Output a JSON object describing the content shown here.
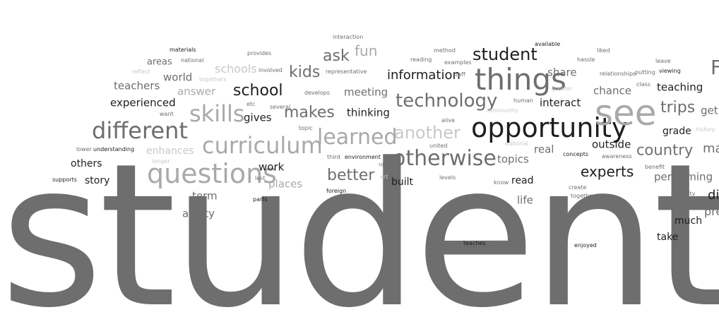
{
  "colors": {
    "dark": "#1e1e1e",
    "mid": "#6e6e6e",
    "light": "#a9a9a9",
    "faint": "#c8c8c8"
  },
  "words": [
    {
      "text": "students",
      "tone": "mid"
    },
    {
      "text": "opportunity",
      "tone": "dark"
    },
    {
      "text": "see",
      "tone": "light"
    },
    {
      "text": "things",
      "tone": "mid"
    },
    {
      "text": "questions",
      "tone": "light"
    },
    {
      "text": "curriculum",
      "tone": "light"
    },
    {
      "text": "different",
      "tone": "mid"
    },
    {
      "text": "otherwise",
      "tone": "mid"
    },
    {
      "text": "technology",
      "tone": "mid"
    },
    {
      "text": "learned",
      "tone": "light"
    },
    {
      "text": "skills",
      "tone": "light"
    },
    {
      "text": "another",
      "tone": "faint"
    },
    {
      "text": "student",
      "tone": "dark"
    },
    {
      "text": "information",
      "tone": "dark"
    },
    {
      "text": "school",
      "tone": "dark"
    },
    {
      "text": "makes",
      "tone": "mid"
    },
    {
      "text": "better",
      "tone": "mid"
    },
    {
      "text": "experts",
      "tone": "dark"
    },
    {
      "text": "country",
      "tone": "mid"
    },
    {
      "text": "trips",
      "tone": "mid"
    },
    {
      "text": "kids",
      "tone": "mid"
    },
    {
      "text": "ask",
      "tone": "mid"
    },
    {
      "text": "fun",
      "tone": "light"
    },
    {
      "text": "experienced",
      "tone": "dark"
    },
    {
      "text": "teachers",
      "tone": "mid"
    },
    {
      "text": "world",
      "tone": "mid"
    },
    {
      "text": "answer",
      "tone": "light"
    },
    {
      "text": "schools",
      "tone": "faint"
    },
    {
      "text": "gives",
      "tone": "dark"
    },
    {
      "text": "thinking",
      "tone": "dark"
    },
    {
      "text": "meeting",
      "tone": "mid"
    },
    {
      "text": "share",
      "tone": "mid"
    },
    {
      "text": "interact",
      "tone": "dark"
    },
    {
      "text": "chance",
      "tone": "mid"
    },
    {
      "text": "teaching",
      "tone": "dark"
    },
    {
      "text": "outside",
      "tone": "dark"
    },
    {
      "text": "grade",
      "tone": "dark"
    },
    {
      "text": "get",
      "tone": "mid"
    },
    {
      "text": "performing",
      "tone": "mid"
    },
    {
      "text": "enhances",
      "tone": "faint"
    },
    {
      "text": "others",
      "tone": "dark"
    },
    {
      "text": "story",
      "tone": "dark"
    },
    {
      "text": "work",
      "tone": "dark"
    },
    {
      "text": "places",
      "tone": "light"
    },
    {
      "text": "term",
      "tone": "mid"
    },
    {
      "text": "ability",
      "tone": "mid"
    },
    {
      "text": "topics",
      "tone": "mid"
    },
    {
      "text": "real",
      "tone": "mid"
    },
    {
      "text": "read",
      "tone": "dark"
    },
    {
      "text": "life",
      "tone": "mid"
    },
    {
      "text": "built",
      "tone": "dark"
    },
    {
      "text": "much",
      "tone": "dark"
    },
    {
      "text": "take",
      "tone": "dark"
    },
    {
      "text": "areas",
      "tone": "mid"
    },
    {
      "text": "materials",
      "tone": "dark"
    },
    {
      "text": "national",
      "tone": "mid"
    },
    {
      "text": "reflect",
      "tone": "faint"
    },
    {
      "text": "togethers",
      "tone": "faint"
    },
    {
      "text": "provides",
      "tone": "mid"
    },
    {
      "text": "involved",
      "tone": "mid"
    },
    {
      "text": "representative",
      "tone": "mid"
    },
    {
      "text": "interaction",
      "tone": "mid"
    },
    {
      "text": "reading",
      "tone": "mid"
    },
    {
      "text": "method",
      "tone": "mid"
    },
    {
      "text": "examples",
      "tone": "mid"
    },
    {
      "text": "staff",
      "tone": "mid"
    },
    {
      "text": "available",
      "tone": "dark"
    },
    {
      "text": "hassle",
      "tone": "mid"
    },
    {
      "text": "liked",
      "tone": "mid"
    },
    {
      "text": "leave",
      "tone": "mid"
    },
    {
      "text": "relationships",
      "tone": "mid"
    },
    {
      "text": "putting",
      "tone": "mid"
    },
    {
      "text": "viewing",
      "tone": "dark"
    },
    {
      "text": "class",
      "tone": "mid"
    },
    {
      "text": "greater",
      "tone": "faint"
    },
    {
      "text": "human",
      "tone": "mid"
    },
    {
      "text": "community",
      "tone": "faint"
    },
    {
      "text": "develops",
      "tone": "mid"
    },
    {
      "text": "etc",
      "tone": "mid"
    },
    {
      "text": "several",
      "tone": "mid"
    },
    {
      "text": "want",
      "tone": "mid"
    },
    {
      "text": "alive",
      "tone": "mid"
    },
    {
      "text": "topic",
      "tone": "mid"
    },
    {
      "text": "united",
      "tone": "mid"
    },
    {
      "text": "editorial",
      "tone": "faint"
    },
    {
      "text": "history",
      "tone": "faint"
    },
    {
      "text": "lower",
      "tone": "mid"
    },
    {
      "text": "understanding",
      "tone": "dark"
    },
    {
      "text": "longer",
      "tone": "faint"
    },
    {
      "text": "third",
      "tone": "mid"
    },
    {
      "text": "environment",
      "tone": "dark"
    },
    {
      "text": "upon",
      "tone": "mid"
    },
    {
      "text": "concepts",
      "tone": "dark"
    },
    {
      "text": "awareness",
      "tone": "mid"
    },
    {
      "text": "benefit",
      "tone": "mid"
    },
    {
      "text": "supports",
      "tone": "dark"
    },
    {
      "text": "lest",
      "tone": "mid"
    },
    {
      "text": "art",
      "tone": "faint"
    },
    {
      "text": "levels",
      "tone": "mid"
    },
    {
      "text": "know",
      "tone": "mid"
    },
    {
      "text": "create",
      "tone": "mid"
    },
    {
      "text": "together",
      "tone": "mid"
    },
    {
      "text": "diversity",
      "tone": "mid"
    },
    {
      "text": "excited",
      "tone": "mid"
    },
    {
      "text": "foreign",
      "tone": "dark"
    },
    {
      "text": "parts",
      "tone": "dark"
    },
    {
      "text": "teaches",
      "tone": "dark"
    },
    {
      "text": "enjoyed",
      "tone": "dark"
    },
    {
      "text": "F",
      "tone": "mid"
    },
    {
      "text": "ma",
      "tone": "mid"
    },
    {
      "text": "di",
      "tone": "dark"
    },
    {
      "text": "pre",
      "tone": "mid"
    }
  ]
}
